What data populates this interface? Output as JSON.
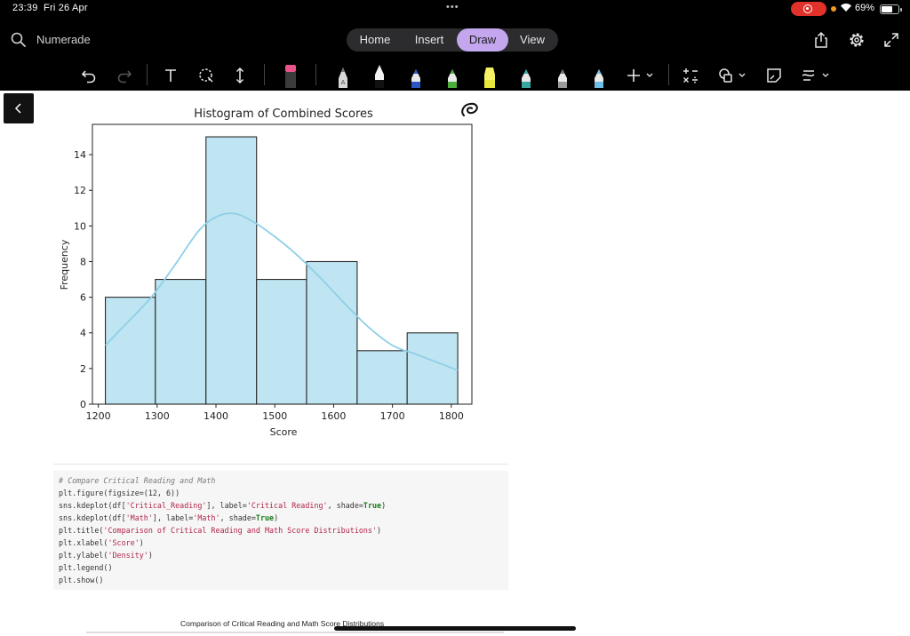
{
  "status_bar": {
    "time": "23:39",
    "date": "Fri 26 Apr",
    "dots": "•••",
    "battery_percent_label": "69%",
    "battery_level": 0.69,
    "colors": {
      "record": "#e0322b",
      "mic": "#f19a1f"
    }
  },
  "app": {
    "search_label": "Numerade",
    "tabs": [
      {
        "label": "Home"
      },
      {
        "label": "Insert"
      },
      {
        "label": "Draw",
        "active": true
      },
      {
        "label": "View"
      }
    ],
    "accent": "#c3a6ee",
    "toolbar_icons": [
      "undo-icon",
      "redo-icon",
      "text-tool-icon",
      "lasso-select-icon",
      "move-space-icon",
      "eraser-icon",
      "pen-icon",
      "marker-icon",
      "highlighter-icon",
      "add-tool-icon",
      "math-icon",
      "shapes-icon",
      "sticky-note-icon",
      "ink-to-shape-icon"
    ],
    "top_right_icons": [
      "share-icon",
      "settings-icon",
      "fullscreen-icon"
    ]
  },
  "chart_data": {
    "type": "bar",
    "title": "Histogram of Combined Scores",
    "xlabel": "Score",
    "ylabel": "Frequency",
    "bins": [
      {
        "start": 1212,
        "end": 1297,
        "count": 6
      },
      {
        "start": 1297,
        "end": 1383,
        "count": 7
      },
      {
        "start": 1383,
        "end": 1469,
        "count": 15
      },
      {
        "start": 1469,
        "end": 1554,
        "count": 7
      },
      {
        "start": 1554,
        "end": 1640,
        "count": 8
      },
      {
        "start": 1640,
        "end": 1725,
        "count": 3
      },
      {
        "start": 1725,
        "end": 1811,
        "count": 4
      }
    ],
    "kde": {
      "x": [
        1212,
        1250,
        1290,
        1330,
        1370,
        1400,
        1430,
        1460,
        1500,
        1540,
        1580,
        1620,
        1660,
        1700,
        1740,
        1780,
        1811
      ],
      "y": [
        3.3,
        4.6,
        6.0,
        7.8,
        9.7,
        10.5,
        10.7,
        10.3,
        9.4,
        8.3,
        7.0,
        5.6,
        4.3,
        3.3,
        2.8,
        2.3,
        1.9
      ]
    },
    "xlim": [
      1190,
      1835
    ],
    "ylim": [
      0,
      15.7
    ],
    "xticks": [
      1200,
      1300,
      1400,
      1500,
      1600,
      1700,
      1800
    ],
    "yticks": [
      0,
      2,
      4,
      6,
      8,
      10,
      12,
      14
    ],
    "colors": {
      "bar_fill": "#bfe4f2",
      "bar_edge": "#2a2a2a",
      "kde": "#8fd0e6"
    },
    "grid": false
  },
  "code": {
    "lines": [
      [
        {
          "t": "# Compare Critical Reading and Math",
          "c": "comment"
        }
      ],
      [
        {
          "t": "plt.figure(figsize=(12, 6))"
        }
      ],
      [
        {
          "t": "sns.kdeplot(df["
        },
        {
          "t": "'Critical_Reading'",
          "c": "str"
        },
        {
          "t": "], label="
        },
        {
          "t": "'Critical Reading'",
          "c": "str"
        },
        {
          "t": ", shade="
        },
        {
          "t": "True",
          "c": "kw"
        },
        {
          "t": ")"
        }
      ],
      [
        {
          "t": "sns.kdeplot(df["
        },
        {
          "t": "'Math'",
          "c": "str"
        },
        {
          "t": "], label="
        },
        {
          "t": "'Math'",
          "c": "str"
        },
        {
          "t": ", shade="
        },
        {
          "t": "True",
          "c": "kw"
        },
        {
          "t": ")"
        }
      ],
      [
        {
          "t": "plt.title("
        },
        {
          "t": "'Comparison of Critical Reading and Math Score Distributions'",
          "c": "str"
        },
        {
          "t": ")"
        }
      ],
      [
        {
          "t": "plt.xlabel("
        },
        {
          "t": "'Score'",
          "c": "str"
        },
        {
          "t": ")"
        }
      ],
      [
        {
          "t": "plt.ylabel("
        },
        {
          "t": "'Density'",
          "c": "str"
        },
        {
          "t": ")"
        }
      ],
      [
        {
          "t": "plt.legend()"
        }
      ],
      [
        {
          "t": "plt.show()"
        }
      ]
    ]
  },
  "next_figure": {
    "title": "Comparison of Critical Reading and Math Score Distributions"
  }
}
